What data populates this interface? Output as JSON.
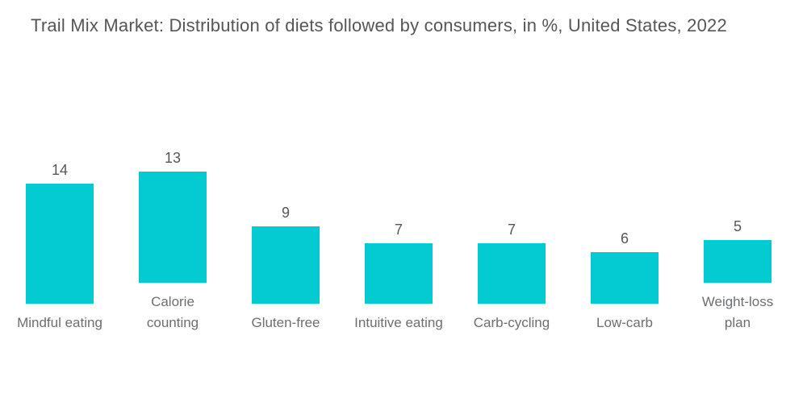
{
  "chart_data": {
    "type": "bar",
    "title": "Trail Mix Market: Distribution of diets followed by consumers, in %, United States, 2022",
    "categories": [
      "Mindful eating",
      "Calorie counting",
      "Gluten-free",
      "Intuitive eating",
      "Carb-cycling",
      "Low-carb",
      "Weight-loss plan"
    ],
    "values": [
      14,
      13,
      9,
      7,
      7,
      6,
      5
    ],
    "xlabel": "",
    "ylabel": "",
    "ylim": [
      0,
      14
    ],
    "grid": false,
    "legend": "none",
    "value_labels_shown": true,
    "colors": {
      "bar": "#04cad1",
      "title_text": "#55565a",
      "value_text": "#55565a",
      "category_text": "#6d6e71",
      "background": "#ffffff"
    }
  }
}
